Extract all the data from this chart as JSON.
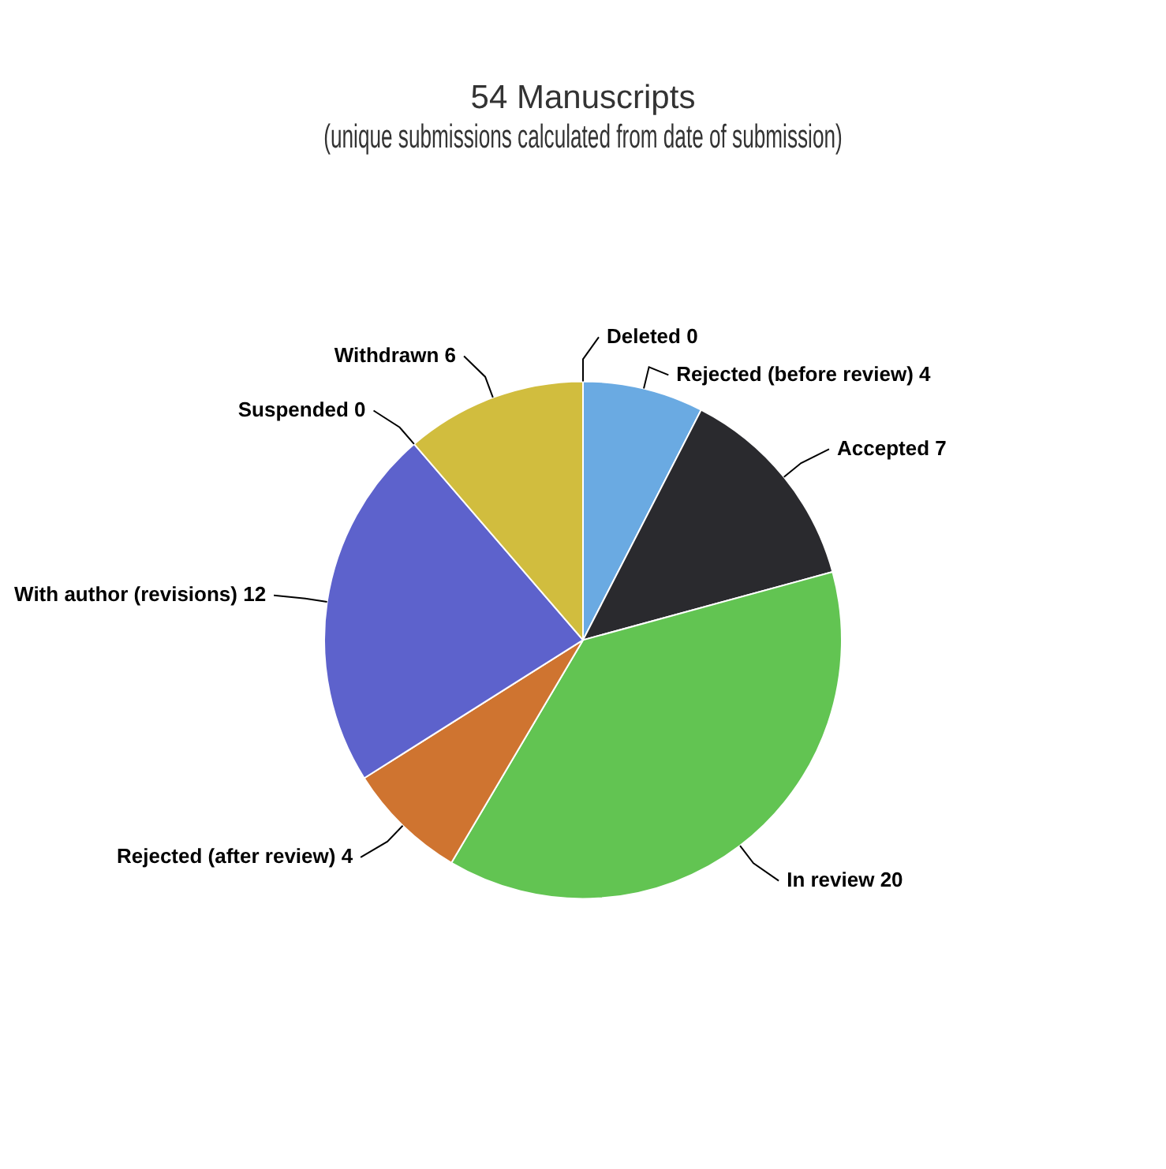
{
  "chart_data": {
    "type": "pie",
    "title": "54 Manuscripts\n(unique submissions calculated from date of submission)",
    "categories": [
      "Deleted 0",
      "Rejected (before review) 4",
      "Accepted 7",
      "In review 20",
      "Rejected (after review) 4",
      "With author (revisions) 12",
      "Suspended 0",
      "Withdrawn 6"
    ],
    "values": [
      0,
      4,
      7,
      20,
      4,
      12,
      0,
      6
    ],
    "colors": [
      "#8d4653",
      "#6aaae2",
      "#2a2a2e",
      "#62c452",
      "#cf7430",
      "#5d62cc",
      "#91e8e1",
      "#d1bd3e"
    ],
    "legend": false
  }
}
